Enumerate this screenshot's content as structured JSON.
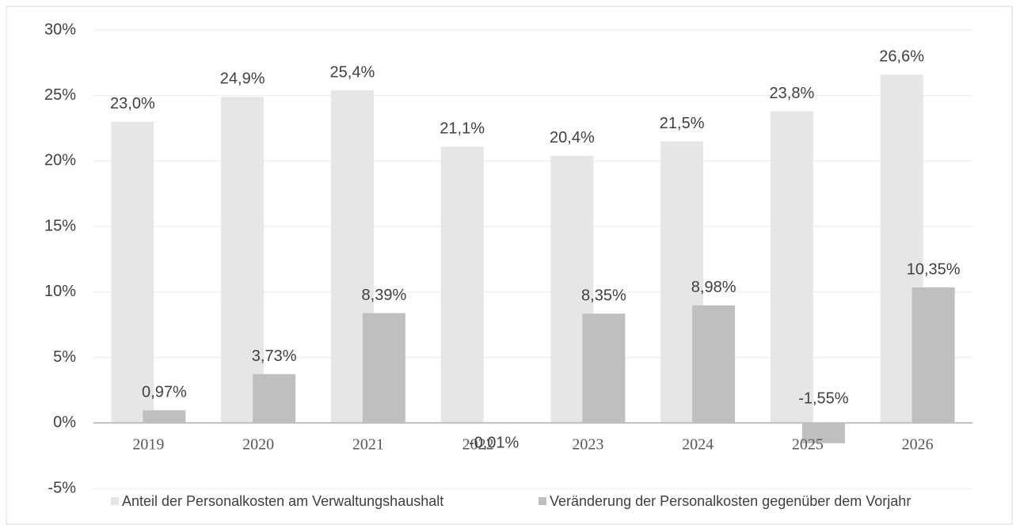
{
  "chart_data": {
    "type": "bar",
    "categories": [
      "2019",
      "2020",
      "2021",
      "2022",
      "2023",
      "2024",
      "2025",
      "2026"
    ],
    "series": [
      {
        "name": "Anteil der Personalkosten am Verwaltungshaushalt",
        "color": "#e6e6e6",
        "values": [
          23.0,
          24.9,
          25.4,
          21.1,
          20.4,
          21.5,
          23.8,
          26.6
        ],
        "value_labels": [
          "23,0%",
          "24,9%",
          "25,4%",
          "21,1%",
          "20,4%",
          "21,5%",
          "23,8%",
          "26,6%"
        ]
      },
      {
        "name": "Veränderung der Personalkosten gegenüber dem Vorjahr",
        "color": "#bfbfbf",
        "values": [
          0.97,
          3.73,
          8.39,
          -0.01,
          8.35,
          8.98,
          -1.55,
          10.35
        ],
        "value_labels": [
          "0,97%",
          "3,73%",
          "8,39%",
          "-0,01%",
          "8,35%",
          "8,98%",
          "-1,55%",
          "10,35%"
        ]
      }
    ],
    "ylim": [
      -5,
      30
    ],
    "yticks": [
      {
        "value": -5,
        "label": "-5%"
      },
      {
        "value": 0,
        "label": "0%"
      },
      {
        "value": 5,
        "label": "5%"
      },
      {
        "value": 10,
        "label": "10%"
      },
      {
        "value": 15,
        "label": "15%"
      },
      {
        "value": 20,
        "label": "20%"
      },
      {
        "value": 25,
        "label": "25%"
      },
      {
        "value": 30,
        "label": "30%"
      }
    ],
    "grid": true,
    "legend": "bottom"
  }
}
